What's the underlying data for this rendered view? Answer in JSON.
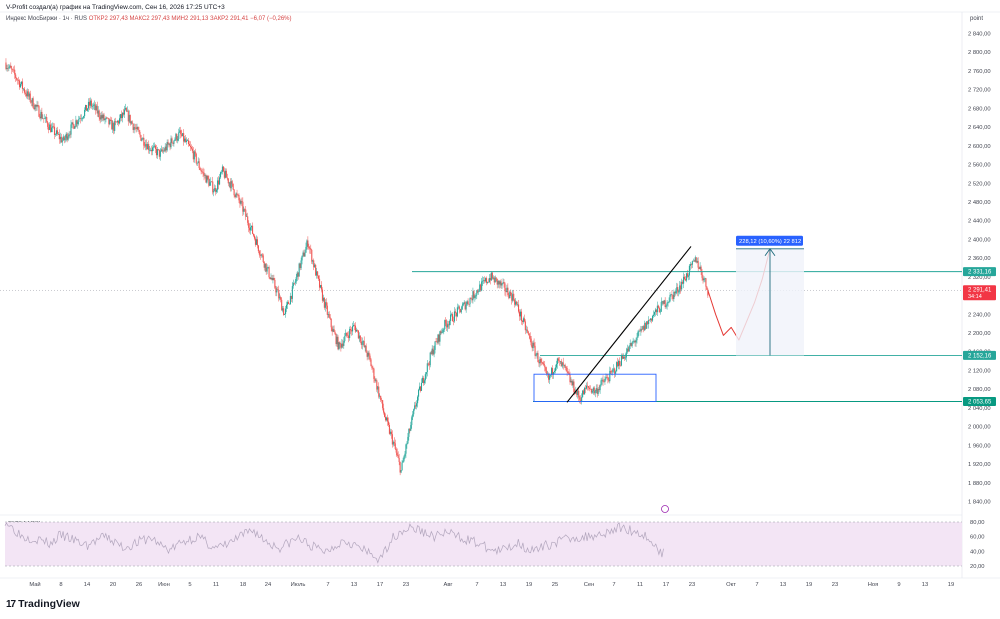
{
  "header": {
    "note": "V-Profit создал(а) график на TradingView.com, Сен 16, 2026 17:25 UTC+3",
    "legend_name": "Индекс МосБиржи · 1ч · RUS",
    "legend_values": "ОТКР2 297,43  МАКС2 297,43  МИН2 291,13  ЗАКР2 291,41  −6,07 (−0,26%)"
  },
  "axis_unit": "point",
  "rsi_title": "80/20 14 RSI",
  "brand": {
    "logo": "17",
    "name": "TradingView"
  },
  "chart_data": {
    "type": "candlestick",
    "title": "Индекс МосБиржи · 1ч · RUS",
    "ylim": [
      1820,
      2880
    ],
    "y_ticks": [
      "2 840,00",
      "2 800,00",
      "2 760,00",
      "2 720,00",
      "2 680,00",
      "2 640,00",
      "2 600,00",
      "2 560,00",
      "2 520,00",
      "2 480,00",
      "2 440,00",
      "2 400,00",
      "2 360,00",
      "2 320,00",
      "2 280,00",
      "2 240,00",
      "2 200,00",
      "2 160,00",
      "2 120,00",
      "2 080,00",
      "2 040,00",
      "2 000,00",
      "1 960,00",
      "1 920,00",
      "1 880,00",
      "1 840,00"
    ],
    "y_tick_values": [
      2840,
      2800,
      2760,
      2720,
      2680,
      2640,
      2600,
      2560,
      2520,
      2480,
      2440,
      2400,
      2360,
      2320,
      2280,
      2240,
      2200,
      2160,
      2120,
      2080,
      2040,
      2000,
      1960,
      1920,
      1880,
      1840
    ],
    "x_ticks": [
      "Май",
      "8",
      "14",
      "20",
      "26",
      "Июн",
      "5",
      "11",
      "18",
      "24",
      "Июль",
      "7",
      "13",
      "17",
      "23",
      "Авг",
      "7",
      "13",
      "19",
      "25",
      "Сен",
      "7",
      "11",
      "17",
      "23",
      "Окт",
      "7",
      "13",
      "19",
      "23",
      "Ноя",
      "9",
      "13",
      "19"
    ],
    "close_path": [
      [
        0,
        2778
      ],
      [
        3,
        2745
      ],
      [
        6,
        2705
      ],
      [
        9,
        2670
      ],
      [
        12,
        2635
      ],
      [
        15,
        2610
      ],
      [
        18,
        2650
      ],
      [
        20,
        2668
      ],
      [
        22,
        2690
      ],
      [
        25,
        2660
      ],
      [
        28,
        2640
      ],
      [
        31,
        2672
      ],
      [
        34,
        2630
      ],
      [
        37,
        2598
      ],
      [
        40,
        2582
      ],
      [
        43,
        2610
      ],
      [
        45,
        2625
      ],
      [
        48,
        2590
      ],
      [
        51,
        2540
      ],
      [
        54,
        2505
      ],
      [
        56,
        2545
      ],
      [
        58,
        2520
      ],
      [
        61,
        2470
      ],
      [
        64,
        2410
      ],
      [
        67,
        2345
      ],
      [
        70,
        2290
      ],
      [
        72,
        2240
      ],
      [
        74,
        2290
      ],
      [
        76,
        2345
      ],
      [
        78,
        2395
      ],
      [
        80,
        2330
      ],
      [
        82,
        2270
      ],
      [
        84,
        2215
      ],
      [
        86,
        2170
      ],
      [
        88,
        2195
      ],
      [
        90,
        2215
      ],
      [
        92,
        2180
      ],
      [
        94,
        2140
      ],
      [
        96,
        2080
      ],
      [
        98,
        2015
      ],
      [
        100,
        1965
      ],
      [
        102,
        1905
      ],
      [
        104,
        1985
      ],
      [
        106,
        2055
      ],
      [
        108,
        2110
      ],
      [
        110,
        2160
      ],
      [
        113,
        2215
      ],
      [
        116,
        2240
      ],
      [
        119,
        2265
      ],
      [
        122,
        2295
      ],
      [
        125,
        2320
      ],
      [
        128,
        2300
      ],
      [
        131,
        2275
      ],
      [
        134,
        2210
      ],
      [
        137,
        2150
      ],
      [
        140,
        2100
      ],
      [
        142,
        2140
      ],
      [
        144,
        2125
      ],
      [
        146,
        2090
      ],
      [
        148,
        2060
      ],
      [
        150,
        2085
      ],
      [
        152,
        2075
      ],
      [
        154,
        2095
      ],
      [
        156,
        2110
      ],
      [
        158,
        2135
      ],
      [
        161,
        2170
      ],
      [
        164,
        2205
      ],
      [
        167,
        2240
      ],
      [
        170,
        2265
      ],
      [
        173,
        2290
      ],
      [
        176,
        2330
      ],
      [
        178,
        2358
      ],
      [
        180,
        2315
      ],
      [
        181,
        2291
      ]
    ],
    "forecast_path": [
      [
        181,
        2291
      ],
      [
        183,
        2240
      ],
      [
        185,
        2195
      ],
      [
        187,
        2212
      ],
      [
        189,
        2185
      ],
      [
        191,
        2225
      ],
      [
        193,
        2265
      ],
      [
        195,
        2315
      ],
      [
        197,
        2380
      ]
    ],
    "rsi": {
      "bands": [
        80,
        20
      ],
      "ticks": [
        "80,00",
        "60,00",
        "40,00",
        "20,00"
      ],
      "tick_values": [
        80,
        60,
        40,
        20
      ],
      "values": [
        82,
        70,
        60,
        58,
        55,
        50,
        62,
        58,
        52,
        48,
        55,
        60,
        52,
        45,
        50,
        55,
        58,
        48,
        42,
        50,
        56,
        60,
        52,
        44,
        48,
        55,
        62,
        70,
        58,
        50,
        45,
        52,
        58,
        50,
        44,
        40,
        48,
        56,
        50,
        42,
        35,
        28,
        55,
        66,
        72,
        70,
        64,
        60,
        66,
        62,
        58,
        54,
        48,
        42,
        40,
        46,
        52,
        44,
        40,
        48,
        52,
        56,
        60,
        58,
        62,
        64,
        68,
        72,
        70,
        66,
        60,
        45,
        35
      ]
    },
    "levels": [
      {
        "value": 2331.16,
        "label": "2 331,16",
        "color": "#26a69a"
      },
      {
        "value": 2152.16,
        "label": "2 152,16",
        "color": "#26a69a"
      },
      {
        "value": 2053.65,
        "label": "2 053,65",
        "color": "#089981"
      }
    ],
    "last_price": {
      "label": "2 291,41",
      "countdown": "34:14",
      "value": 2291.41,
      "color": "#f23645"
    },
    "measure_label": "228,12 (10,60%) 22 812",
    "colors": {
      "up": "#26a69a",
      "down": "#ef5350",
      "trend": "#000000",
      "box": "#2962ff",
      "forecast": "#e53935",
      "rsi_fill": "#f3e5f5",
      "rsi_line": "#b2a6bd"
    }
  }
}
